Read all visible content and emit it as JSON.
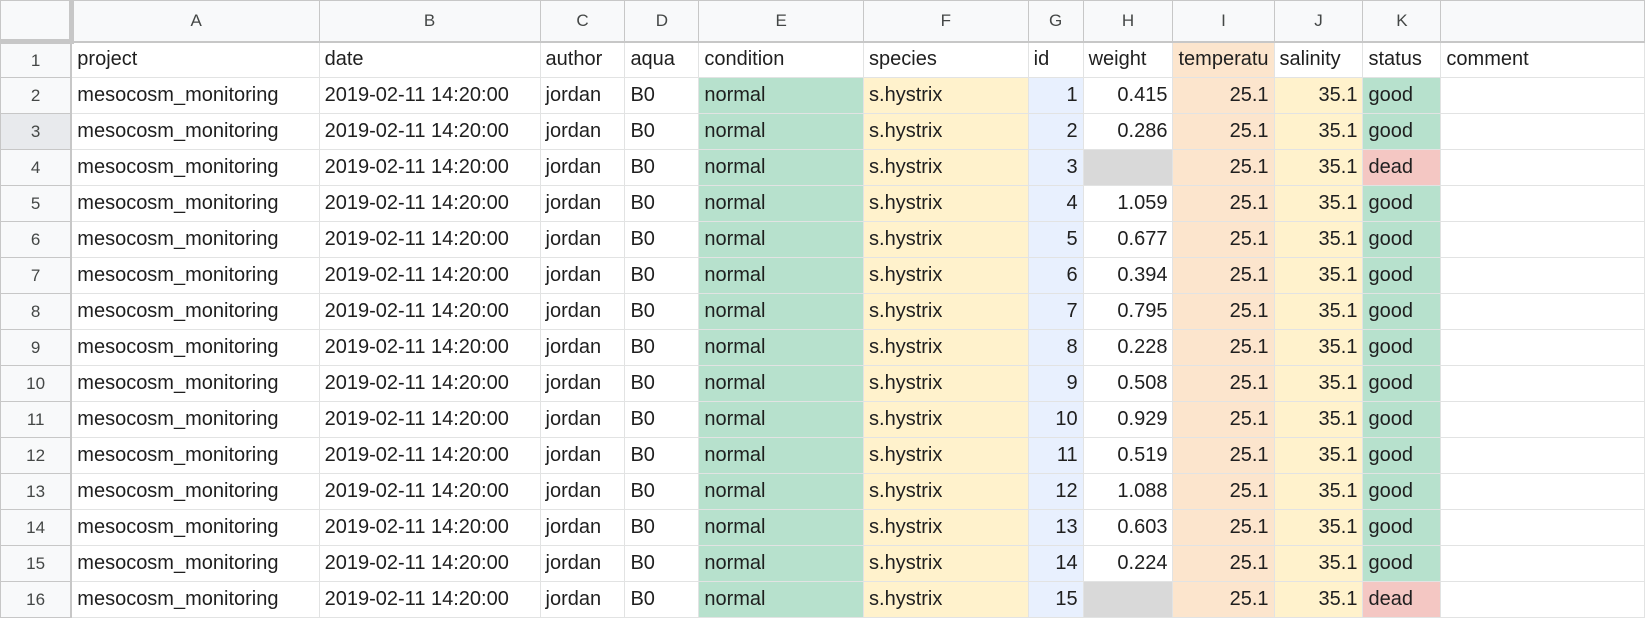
{
  "columns": [
    "A",
    "B",
    "C",
    "D",
    "E",
    "F",
    "G",
    "H",
    "I",
    "J",
    "K",
    ""
  ],
  "header_row": {
    "row_number": "1",
    "fields": [
      "project",
      "date",
      "author",
      "aqua",
      "condition",
      "species",
      "id",
      "weight",
      "temperatu",
      "salinity",
      "status",
      "comment"
    ]
  },
  "rows": [
    {
      "n": "2",
      "project": "mesocosm_monitoring",
      "date": "2019-02-11 14:20:00",
      "author": "jordan",
      "aqua": "B0",
      "condition": "normal",
      "species": "s.hystrix",
      "id": "1",
      "weight": "0.415",
      "temperature": "25.1",
      "salinity": "35.1",
      "status": "good",
      "comment": ""
    },
    {
      "n": "3",
      "project": "mesocosm_monitoring",
      "date": "2019-02-11 14:20:00",
      "author": "jordan",
      "aqua": "B0",
      "condition": "normal",
      "species": "s.hystrix",
      "id": "2",
      "weight": "0.286",
      "temperature": "25.1",
      "salinity": "35.1",
      "status": "good",
      "comment": ""
    },
    {
      "n": "4",
      "project": "mesocosm_monitoring",
      "date": "2019-02-11 14:20:00",
      "author": "jordan",
      "aqua": "B0",
      "condition": "normal",
      "species": "s.hystrix",
      "id": "3",
      "weight": "",
      "temperature": "25.1",
      "salinity": "35.1",
      "status": "dead",
      "comment": ""
    },
    {
      "n": "5",
      "project": "mesocosm_monitoring",
      "date": "2019-02-11 14:20:00",
      "author": "jordan",
      "aqua": "B0",
      "condition": "normal",
      "species": "s.hystrix",
      "id": "4",
      "weight": "1.059",
      "temperature": "25.1",
      "salinity": "35.1",
      "status": "good",
      "comment": ""
    },
    {
      "n": "6",
      "project": "mesocosm_monitoring",
      "date": "2019-02-11 14:20:00",
      "author": "jordan",
      "aqua": "B0",
      "condition": "normal",
      "species": "s.hystrix",
      "id": "5",
      "weight": "0.677",
      "temperature": "25.1",
      "salinity": "35.1",
      "status": "good",
      "comment": ""
    },
    {
      "n": "7",
      "project": "mesocosm_monitoring",
      "date": "2019-02-11 14:20:00",
      "author": "jordan",
      "aqua": "B0",
      "condition": "normal",
      "species": "s.hystrix",
      "id": "6",
      "weight": "0.394",
      "temperature": "25.1",
      "salinity": "35.1",
      "status": "good",
      "comment": ""
    },
    {
      "n": "8",
      "project": "mesocosm_monitoring",
      "date": "2019-02-11 14:20:00",
      "author": "jordan",
      "aqua": "B0",
      "condition": "normal",
      "species": "s.hystrix",
      "id": "7",
      "weight": "0.795",
      "temperature": "25.1",
      "salinity": "35.1",
      "status": "good",
      "comment": ""
    },
    {
      "n": "9",
      "project": "mesocosm_monitoring",
      "date": "2019-02-11 14:20:00",
      "author": "jordan",
      "aqua": "B0",
      "condition": "normal",
      "species": "s.hystrix",
      "id": "8",
      "weight": "0.228",
      "temperature": "25.1",
      "salinity": "35.1",
      "status": "good",
      "comment": ""
    },
    {
      "n": "10",
      "project": "mesocosm_monitoring",
      "date": "2019-02-11 14:20:00",
      "author": "jordan",
      "aqua": "B0",
      "condition": "normal",
      "species": "s.hystrix",
      "id": "9",
      "weight": "0.508",
      "temperature": "25.1",
      "salinity": "35.1",
      "status": "good",
      "comment": ""
    },
    {
      "n": "11",
      "project": "mesocosm_monitoring",
      "date": "2019-02-11 14:20:00",
      "author": "jordan",
      "aqua": "B0",
      "condition": "normal",
      "species": "s.hystrix",
      "id": "10",
      "weight": "0.929",
      "temperature": "25.1",
      "salinity": "35.1",
      "status": "good",
      "comment": ""
    },
    {
      "n": "12",
      "project": "mesocosm_monitoring",
      "date": "2019-02-11 14:20:00",
      "author": "jordan",
      "aqua": "B0",
      "condition": "normal",
      "species": "s.hystrix",
      "id": "11",
      "weight": "0.519",
      "temperature": "25.1",
      "salinity": "35.1",
      "status": "good",
      "comment": ""
    },
    {
      "n": "13",
      "project": "mesocosm_monitoring",
      "date": "2019-02-11 14:20:00",
      "author": "jordan",
      "aqua": "B0",
      "condition": "normal",
      "species": "s.hystrix",
      "id": "12",
      "weight": "1.088",
      "temperature": "25.1",
      "salinity": "35.1",
      "status": "good",
      "comment": ""
    },
    {
      "n": "14",
      "project": "mesocosm_monitoring",
      "date": "2019-02-11 14:20:00",
      "author": "jordan",
      "aqua": "B0",
      "condition": "normal",
      "species": "s.hystrix",
      "id": "13",
      "weight": "0.603",
      "temperature": "25.1",
      "salinity": "35.1",
      "status": "good",
      "comment": ""
    },
    {
      "n": "15",
      "project": "mesocosm_monitoring",
      "date": "2019-02-11 14:20:00",
      "author": "jordan",
      "aqua": "B0",
      "condition": "normal",
      "species": "s.hystrix",
      "id": "14",
      "weight": "0.224",
      "temperature": "25.1",
      "salinity": "35.1",
      "status": "good",
      "comment": ""
    },
    {
      "n": "16",
      "project": "mesocosm_monitoring",
      "date": "2019-02-11 14:20:00",
      "author": "jordan",
      "aqua": "B0",
      "condition": "normal",
      "species": "s.hystrix",
      "id": "15",
      "weight": "",
      "temperature": "25.1",
      "salinity": "35.1",
      "status": "dead",
      "comment": ""
    }
  ],
  "colors": {
    "condition_fill": "#b7e1cd",
    "species_fill": "#fff2cc",
    "id_fill": "#e8f0fe",
    "temperature_fill": "#fce5cd",
    "salinity_fill": "#fff2cc",
    "status_good": "#b7e1cd",
    "status_dead": "#f4c7c3",
    "empty_weight": "#d9d9d9"
  }
}
